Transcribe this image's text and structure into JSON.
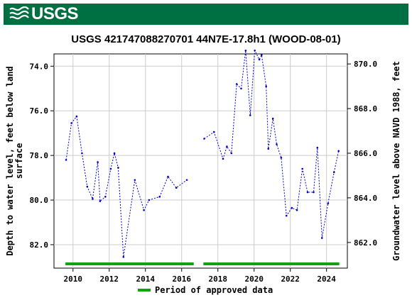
{
  "header": {
    "logo_text": "USGS",
    "banner_color": "#006f41"
  },
  "chart_data": {
    "type": "line",
    "title": "USGS 421747088270701 44N7E-17.8h1 (WOOD-08-01)",
    "ylabel_left": "Depth to water level, feet below land surface",
    "ylabel_right": "Groundwater level above NAVD 1988, feet",
    "xlim": [
      2008.95,
      2025.15
    ],
    "ylim_left": [
      73.45,
      83.05
    ],
    "ylim_right_ticks": [
      "870.0",
      "868.0",
      "866.0",
      "864.0",
      "862.0"
    ],
    "x_ticks": [
      "2010",
      "2012",
      "2014",
      "2016",
      "2018",
      "2020",
      "2022",
      "2024"
    ],
    "y_ticks_left": [
      "74.0",
      "76.0",
      "78.0",
      "80.0",
      "82.0"
    ],
    "grid": true,
    "series_color": "#0000cc",
    "segments": [
      [
        [
          "2009-08-15",
          78.2
        ],
        [
          "2009-12-01",
          76.55
        ],
        [
          "2010-03-15",
          76.25
        ],
        [
          "2010-07-01",
          77.9
        ],
        [
          "2010-10-15",
          79.4
        ],
        [
          "2011-02-01",
          79.95
        ],
        [
          "2011-05-15",
          78.3
        ],
        [
          "2011-07-01",
          80.05
        ],
        [
          "2011-10-15",
          79.85
        ],
        [
          "2012-02-01",
          78.6
        ],
        [
          "2012-04-15",
          77.9
        ],
        [
          "2012-07-01",
          78.55
        ],
        [
          "2012-10-15",
          82.55
        ],
        [
          "2013-06-01",
          79.1
        ],
        [
          "2013-12-01",
          80.45
        ],
        [
          "2014-03-15",
          80.0
        ],
        [
          "2014-10-15",
          79.85
        ],
        [
          "2015-04-01",
          78.95
        ],
        [
          "2015-09-15",
          79.45
        ],
        [
          "2016-04-15",
          79.1
        ]
      ],
      [
        [
          "2017-04-01",
          77.25
        ],
        [
          "2017-10-15",
          76.95
        ],
        [
          "2018-04-15",
          78.15
        ],
        [
          "2018-07-01",
          77.6
        ],
        [
          "2018-10-01",
          77.9
        ],
        [
          "2019-01-15",
          74.8
        ],
        [
          "2019-04-15",
          75.0
        ],
        [
          "2019-07-15",
          73.3
        ],
        [
          "2019-10-15",
          76.2
        ],
        [
          "2020-01-15",
          73.3
        ],
        [
          "2020-04-15",
          73.7
        ],
        [
          "2020-06-01",
          73.5
        ],
        [
          "2020-09-01",
          74.9
        ],
        [
          "2020-10-15",
          77.7
        ],
        [
          "2021-01-15",
          76.35
        ],
        [
          "2021-04-01",
          77.5
        ],
        [
          "2021-07-01",
          78.1
        ],
        [
          "2021-10-15",
          80.7
        ],
        [
          "2022-02-01",
          80.35
        ],
        [
          "2022-05-15",
          80.45
        ],
        [
          "2022-09-01",
          78.6
        ],
        [
          "2022-12-15",
          79.65
        ],
        [
          "2023-04-15",
          79.65
        ],
        [
          "2023-07-01",
          77.65
        ],
        [
          "2023-10-01",
          81.7
        ],
        [
          "2024-02-01",
          80.15
        ],
        [
          "2024-06-01",
          78.75
        ],
        [
          "2024-09-01",
          77.8
        ]
      ]
    ],
    "approved_periods": [
      [
        "2009-08-01",
        "2016-09-01"
      ],
      [
        "2017-03-15",
        "2024-09-15"
      ]
    ],
    "approved_color": "#13a113",
    "legend": {
      "label": "Period of approved data",
      "placement": "bottom-center"
    }
  }
}
